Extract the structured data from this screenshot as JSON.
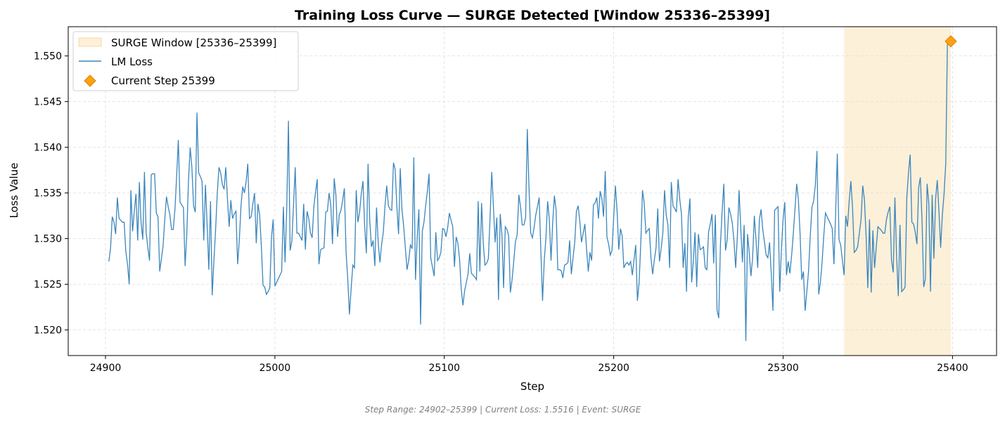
{
  "chart_data": {
    "type": "line",
    "title": "Training Loss Curve — SURGE Detected [Window 25336–25399]",
    "xlabel": "Step",
    "ylabel": "Loss Value",
    "xlim": [
      24878,
      25426
    ],
    "ylim": [
      1.5172,
      1.5532
    ],
    "xticks": [
      24900,
      25000,
      25100,
      25200,
      25300,
      25400
    ],
    "xtick_labels": [
      "24900",
      "25000",
      "25100",
      "25200",
      "25300",
      "25400"
    ],
    "yticks": [
      1.52,
      1.525,
      1.53,
      1.535,
      1.54,
      1.545,
      1.55
    ],
    "ytick_labels": [
      "1.520",
      "1.525",
      "1.530",
      "1.535",
      "1.540",
      "1.545",
      "1.550"
    ],
    "grid": true,
    "legend_position": "upper-left",
    "window": {
      "start": 25336,
      "end": 25399,
      "label": "SURGE Window [25336–25399]",
      "color": "#fdf0d9"
    },
    "series": [
      {
        "name": "LM Loss",
        "color": "#3b86bc",
        "x_start": 24902,
        "x_step": 1,
        "values": [
          1.5275,
          1.529,
          1.5324,
          1.5318,
          1.5305,
          1.5345,
          1.5322,
          1.532,
          1.5318,
          1.5318,
          1.5286,
          1.5272,
          1.525,
          1.5353,
          1.5308,
          1.533,
          1.5349,
          1.5298,
          1.5362,
          1.5318,
          1.5299,
          1.5373,
          1.5307,
          1.529,
          1.5276,
          1.537,
          1.5371,
          1.5371,
          1.5328,
          1.5324,
          1.5264,
          1.5278,
          1.5292,
          1.5321,
          1.5346,
          1.5335,
          1.5326,
          1.531,
          1.531,
          1.5332,
          1.5368,
          1.5408,
          1.534,
          1.5337,
          1.5334,
          1.527,
          1.5305,
          1.5364,
          1.54,
          1.5378,
          1.5336,
          1.5329,
          1.5438,
          1.5372,
          1.5368,
          1.5363,
          1.5298,
          1.5359,
          1.5315,
          1.5266,
          1.5341,
          1.5238,
          1.5276,
          1.531,
          1.535,
          1.5378,
          1.5372,
          1.5359,
          1.5354,
          1.5378,
          1.5344,
          1.5313,
          1.5342,
          1.5322,
          1.5327,
          1.533,
          1.5272,
          1.5298,
          1.5336,
          1.5357,
          1.535,
          1.5362,
          1.5382,
          1.5322,
          1.5324,
          1.5338,
          1.535,
          1.5295,
          1.5338,
          1.5326,
          1.5292,
          1.5249,
          1.5247,
          1.5239,
          1.5242,
          1.5246,
          1.5302,
          1.5321,
          1.5248,
          1.5252,
          1.5256,
          1.526,
          1.5264,
          1.5335,
          1.5274,
          1.5334,
          1.5429,
          1.5287,
          1.5297,
          1.5337,
          1.5378,
          1.5306,
          1.5306,
          1.5302,
          1.5298,
          1.5338,
          1.5288,
          1.533,
          1.5322,
          1.5306,
          1.5301,
          1.5335,
          1.5351,
          1.5365,
          1.5272,
          1.5288,
          1.5289,
          1.529,
          1.5329,
          1.533,
          1.535,
          1.5337,
          1.5294,
          1.5366,
          1.5348,
          1.5302,
          1.5326,
          1.5331,
          1.5342,
          1.5355,
          1.5286,
          1.5256,
          1.5217,
          1.5245,
          1.5271,
          1.5268,
          1.5353,
          1.5318,
          1.5329,
          1.5349,
          1.5363,
          1.5313,
          1.5284,
          1.5382,
          1.5319,
          1.5291,
          1.5298,
          1.527,
          1.5334,
          1.5295,
          1.5274,
          1.5294,
          1.5307,
          1.5336,
          1.5358,
          1.5336,
          1.5332,
          1.5331,
          1.5383,
          1.5376,
          1.5335,
          1.5305,
          1.5377,
          1.5332,
          1.5314,
          1.529,
          1.5266,
          1.5276,
          1.5293,
          1.5289,
          1.5389,
          1.5255,
          1.5301,
          1.5332,
          1.5206,
          1.5308,
          1.5318,
          1.5336,
          1.5352,
          1.5371,
          1.5279,
          1.5269,
          1.5259,
          1.5307,
          1.5276,
          1.5279,
          1.5285,
          1.5311,
          1.531,
          1.5302,
          1.5312,
          1.5328,
          1.532,
          1.5313,
          1.5269,
          1.5302,
          1.5295,
          1.5278,
          1.5245,
          1.5227,
          1.5243,
          1.5252,
          1.5261,
          1.5284,
          1.5262,
          1.526,
          1.5258,
          1.5255,
          1.5341,
          1.5264,
          1.5339,
          1.5295,
          1.5271,
          1.5273,
          1.5278,
          1.5322,
          1.5373,
          1.5335,
          1.5296,
          1.5323,
          1.5233,
          1.5327,
          1.5305,
          1.5246,
          1.5313,
          1.531,
          1.5303,
          1.5241,
          1.5255,
          1.5275,
          1.5297,
          1.5304,
          1.5348,
          1.5335,
          1.5315,
          1.5315,
          1.5323,
          1.542,
          1.5356,
          1.5306,
          1.5301,
          1.5312,
          1.5326,
          1.5335,
          1.5345,
          1.5286,
          1.5232,
          1.5276,
          1.5301,
          1.5341,
          1.5321,
          1.5276,
          1.5318,
          1.5347,
          1.5331,
          1.5266,
          1.5266,
          1.5265,
          1.5257,
          1.5271,
          1.5272,
          1.5274,
          1.5298,
          1.5261,
          1.5279,
          1.5296,
          1.533,
          1.5336,
          1.5319,
          1.5296,
          1.5306,
          1.5316,
          1.5288,
          1.5264,
          1.5285,
          1.5276,
          1.5337,
          1.5339,
          1.5345,
          1.5322,
          1.5352,
          1.5344,
          1.5324,
          1.5374,
          1.5302,
          1.5294,
          1.5282,
          1.5287,
          1.5324,
          1.5358,
          1.533,
          1.5288,
          1.5311,
          1.5303,
          1.5268,
          1.5272,
          1.5274,
          1.5271,
          1.5275,
          1.526,
          1.5277,
          1.5293,
          1.5232,
          1.5252,
          1.5295,
          1.5353,
          1.5339,
          1.5306,
          1.5309,
          1.5311,
          1.5279,
          1.5261,
          1.5277,
          1.529,
          1.5333,
          1.5275,
          1.5289,
          1.5306,
          1.5353,
          1.5326,
          1.5315,
          1.5268,
          1.5362,
          1.5336,
          1.5333,
          1.5329,
          1.5365,
          1.5343,
          1.5327,
          1.5268,
          1.5295,
          1.5242,
          1.5323,
          1.5344,
          1.5252,
          1.5275,
          1.5307,
          1.5247,
          1.5305,
          1.5288,
          1.5289,
          1.5291,
          1.5268,
          1.5266,
          1.5307,
          1.5316,
          1.5327,
          1.5273,
          1.5326,
          1.5222,
          1.5213,
          1.5293,
          1.533,
          1.536,
          1.5287,
          1.5299,
          1.5334,
          1.5327,
          1.5317,
          1.5297,
          1.5268,
          1.5303,
          1.5353,
          1.5311,
          1.5274,
          1.5315,
          1.5188,
          1.5305,
          1.5285,
          1.5259,
          1.5279,
          1.5325,
          1.5299,
          1.5268,
          1.5321,
          1.5332,
          1.531,
          1.5296,
          1.5282,
          1.5279,
          1.5296,
          1.5262,
          1.5221,
          1.5331,
          1.5333,
          1.5335,
          1.5242,
          1.5288,
          1.5322,
          1.534,
          1.526,
          1.5275,
          1.5262,
          1.5281,
          1.5305,
          1.5332,
          1.536,
          1.5343,
          1.5306,
          1.5255,
          1.5264,
          1.5221,
          1.5242,
          1.5264,
          1.5302,
          1.5334,
          1.5341,
          1.5358,
          1.5396,
          1.5239,
          1.5252,
          1.5274,
          1.5303,
          1.5328,
          1.5324,
          1.532,
          1.5316,
          1.5311,
          1.5272,
          1.5327,
          1.5393,
          1.5299,
          1.5293,
          1.5276,
          1.526,
          1.5325,
          1.5313,
          1.5341,
          1.5363,
          1.5333,
          1.5285,
          1.5287,
          1.5291,
          1.5306,
          1.5321,
          1.5358,
          1.5343,
          1.5302,
          1.5246,
          1.5321,
          1.5241,
          1.5309,
          1.5268,
          1.5291,
          1.5313,
          1.5311,
          1.5309,
          1.5306,
          1.5306,
          1.5321,
          1.5329,
          1.5335,
          1.5276,
          1.5263,
          1.5345,
          1.528,
          1.5237,
          1.5315,
          1.5242,
          1.5244,
          1.5247,
          1.5344,
          1.5372,
          1.5392,
          1.5318,
          1.5316,
          1.5307,
          1.5294,
          1.5356,
          1.5367,
          1.5321,
          1.5247,
          1.5256,
          1.536,
          1.5339,
          1.5242,
          1.5348,
          1.5278,
          1.5343,
          1.5364,
          1.533,
          1.529,
          1.5326,
          1.5349,
          1.5382,
          1.5516
        ]
      }
    ],
    "current_point": {
      "x": 25399,
      "y": 1.5516,
      "label": "Current Step 25399",
      "color": "#ffa010",
      "edge": "#e08000"
    }
  },
  "footer": "Step Range: 24902–25399 | Current Loss: 1.5516 | Event: SURGE"
}
